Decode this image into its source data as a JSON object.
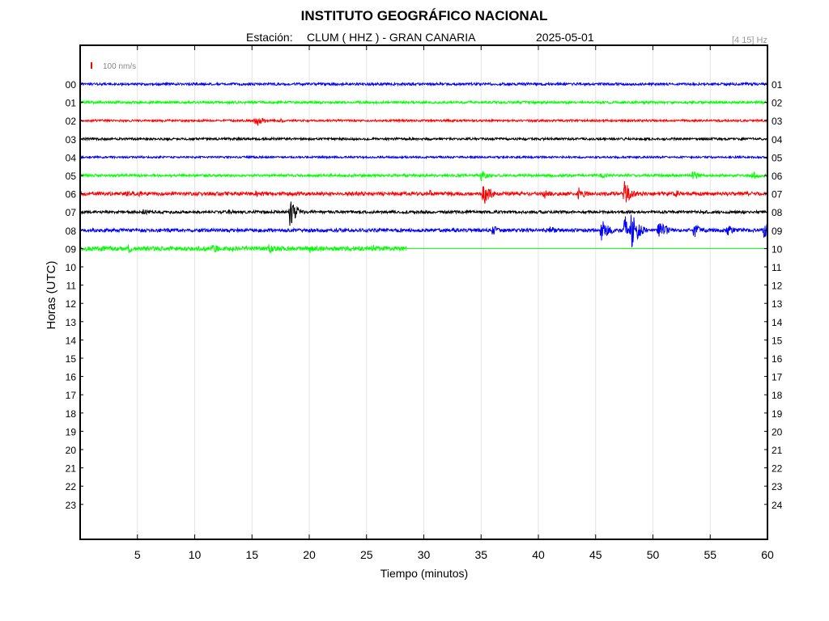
{
  "header": {
    "title": "INSTITUTO GEOGRÁFICO NACIONAL",
    "station_label": "Estación:",
    "station_value": "CLUM ( HHZ ) - GRAN CANARIA",
    "date": "2025-05-01",
    "filter": "[4 15] Hz"
  },
  "scale_bar": {
    "label": "100 nm/s",
    "color": "#ff0000"
  },
  "chart_data": {
    "type": "line",
    "xlabel": "Tiempo (minutos)",
    "ylabel": "Horas (UTC)",
    "xlim": [
      0,
      60
    ],
    "x_ticks": [
      5,
      10,
      15,
      20,
      25,
      30,
      35,
      40,
      45,
      50,
      55,
      60
    ],
    "left_tick_labels": [
      "00",
      "01",
      "02",
      "03",
      "04",
      "05",
      "06",
      "07",
      "08",
      "09",
      "10",
      "11",
      "12",
      "13",
      "14",
      "15",
      "16",
      "17",
      "18",
      "19",
      "20",
      "21",
      "22",
      "23"
    ],
    "right_tick_labels": [
      "01",
      "02",
      "03",
      "04",
      "05",
      "06",
      "07",
      "08",
      "09",
      "10",
      "11",
      "12",
      "13",
      "14",
      "15",
      "16",
      "17",
      "18",
      "19",
      "20",
      "21",
      "22",
      "23",
      "24"
    ],
    "grid": "vertical",
    "trace_colors": [
      "#0000ff",
      "#00ff00",
      "#ff0000",
      "#000000"
    ],
    "traces": [
      {
        "hour": "00",
        "end_minute": 60,
        "noise": 1.5,
        "events": [
          {
            "t": 50.5,
            "amp": 2
          }
        ]
      },
      {
        "hour": "01",
        "end_minute": 60,
        "noise": 1.5,
        "events": []
      },
      {
        "hour": "02",
        "end_minute": 60,
        "noise": 1.3,
        "events": [
          {
            "t": 15.3,
            "amp": 9
          },
          {
            "t": 17.5,
            "amp": 3
          }
        ]
      },
      {
        "hour": "03",
        "end_minute": 60,
        "noise": 1.4,
        "events": []
      },
      {
        "hour": "04",
        "end_minute": 60,
        "noise": 1.2,
        "events": []
      },
      {
        "hour": "05",
        "end_minute": 60,
        "noise": 1.6,
        "events": [
          {
            "t": 35.0,
            "amp": 9
          },
          {
            "t": 45.5,
            "amp": 5
          },
          {
            "t": 53.5,
            "amp": 7
          },
          {
            "t": 58.7,
            "amp": 6
          }
        ]
      },
      {
        "hour": "06",
        "end_minute": 60,
        "noise": 2.2,
        "events": [
          {
            "t": 4,
            "amp": 4
          },
          {
            "t": 5,
            "amp": 5
          },
          {
            "t": 15.3,
            "amp": 5
          },
          {
            "t": 30.5,
            "amp": 5
          },
          {
            "t": 35.2,
            "amp": 18
          },
          {
            "t": 40.5,
            "amp": 8
          },
          {
            "t": 43.5,
            "amp": 9
          },
          {
            "t": 47.5,
            "amp": 17
          },
          {
            "t": 52,
            "amp": 5
          }
        ]
      },
      {
        "hour": "07",
        "end_minute": 60,
        "noise": 1.7,
        "events": [
          {
            "t": 5.5,
            "amp": 5
          },
          {
            "t": 18.3,
            "amp": 18
          },
          {
            "t": 13,
            "amp": 4
          }
        ]
      },
      {
        "hour": "08",
        "end_minute": 60,
        "noise": 2.1,
        "events": [
          {
            "t": 36,
            "amp": 7
          },
          {
            "t": 41,
            "amp": 6
          },
          {
            "t": 45.5,
            "amp": 18
          },
          {
            "t": 47.5,
            "amp": 22
          },
          {
            "t": 48,
            "amp": 32
          },
          {
            "t": 50.5,
            "amp": 18
          },
          {
            "t": 53.5,
            "amp": 12
          },
          {
            "t": 56.5,
            "amp": 8
          },
          {
            "t": 59.7,
            "amp": 10
          }
        ]
      },
      {
        "hour": "09",
        "end_minute": 28.5,
        "noise": 2.6,
        "events": [
          {
            "t": 4.2,
            "amp": 6
          },
          {
            "t": 11.5,
            "amp": 8
          },
          {
            "t": 13.3,
            "amp": 5
          },
          {
            "t": 16.5,
            "amp": 7
          },
          {
            "t": 20,
            "amp": 6
          },
          {
            "t": 25.5,
            "amp": 6
          }
        ]
      }
    ]
  }
}
